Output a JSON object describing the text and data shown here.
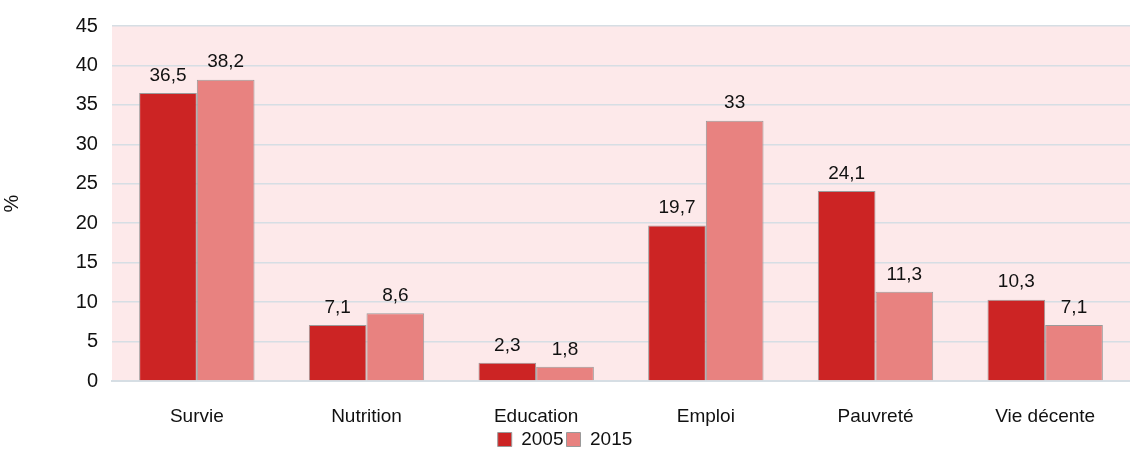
{
  "chart_data": {
    "type": "bar",
    "ylabel": "%",
    "categories": [
      "Survie",
      "Nutrition",
      "Education",
      "Emploi",
      "Pauvreté",
      "Vie décente"
    ],
    "series": [
      {
        "name": "2005",
        "color": "#cc2424",
        "values": [
          36.5,
          7.1,
          2.3,
          19.7,
          24.1,
          10.3
        ],
        "value_labels": [
          "36,5",
          "7,1",
          "2,3",
          "19,7",
          "24,1",
          "10,3"
        ]
      },
      {
        "name": "2015",
        "color": "#e88280",
        "values": [
          38.2,
          8.6,
          1.8,
          33,
          11.3,
          7.1
        ],
        "value_labels": [
          "38,2",
          "8,6",
          "1,8",
          "33",
          "11,3",
          "7,1"
        ]
      }
    ],
    "ylim": [
      0,
      45
    ],
    "yticks": [
      0,
      5,
      10,
      15,
      20,
      25,
      30,
      35,
      40,
      45
    ],
    "grid": "y",
    "legend": "bottom"
  }
}
